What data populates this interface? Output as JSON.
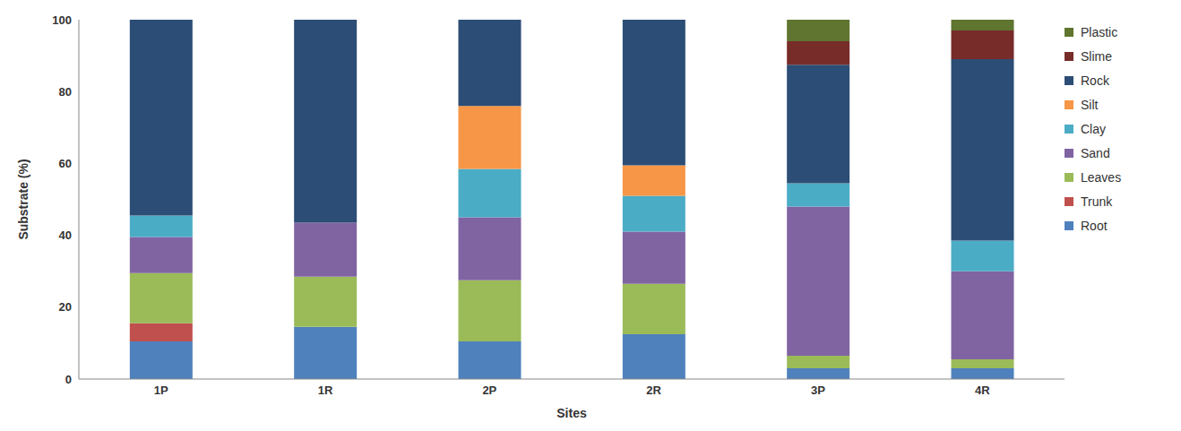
{
  "chart_data": {
    "type": "bar",
    "stacked": true,
    "x_label": "Sites",
    "y_label": "Substrate (%)",
    "categories": [
      "1P",
      "1R",
      "2P",
      "2R",
      "3P",
      "4R"
    ],
    "series": [
      {
        "name": "Root",
        "color": "#4f81bd",
        "values": [
          10.5,
          14.5,
          10.5,
          12.5,
          3,
          3
        ]
      },
      {
        "name": "Trunk",
        "color": "#c0504d",
        "values": [
          5,
          0,
          0,
          0,
          0,
          0
        ]
      },
      {
        "name": "Leaves",
        "color": "#9bbb59",
        "values": [
          14,
          14,
          17,
          14,
          3.5,
          2.5
        ]
      },
      {
        "name": "Sand",
        "color": "#8064a2",
        "values": [
          10,
          15,
          17.5,
          14.5,
          41.5,
          24.5
        ]
      },
      {
        "name": "Clay",
        "color": "#4bacc6",
        "values": [
          6,
          0,
          13.5,
          10,
          6.5,
          8.5
        ]
      },
      {
        "name": "Silt",
        "color": "#f79646",
        "values": [
          0,
          0,
          17.5,
          8.5,
          0,
          0
        ]
      },
      {
        "name": "Rock",
        "color": "#2c4d75",
        "values": [
          54.5,
          56.5,
          24,
          40.5,
          33,
          50.5
        ]
      },
      {
        "name": "Slime",
        "color": "#772c2a",
        "values": [
          0,
          0,
          0,
          0,
          6.5,
          8
        ]
      },
      {
        "name": "Plastic",
        "color": "#5f7530",
        "values": [
          0,
          0,
          0,
          0,
          6,
          3
        ]
      }
    ],
    "ylim": [
      0,
      100
    ],
    "yticks": [
      0,
      20,
      40,
      60,
      80,
      100
    ],
    "grid": false,
    "legend": "right"
  }
}
